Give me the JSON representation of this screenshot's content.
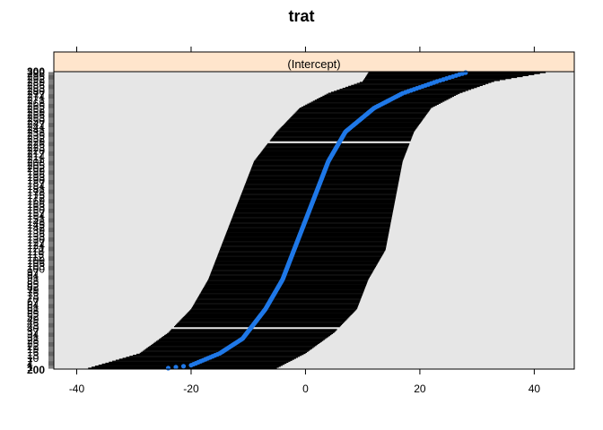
{
  "chart_data": {
    "type": "dotplot",
    "title": "trat",
    "panel_label": "(Intercept)",
    "x_ticks": [
      -40,
      -20,
      0,
      20,
      40
    ],
    "xlim": [
      -44,
      47
    ],
    "n_levels": 300,
    "y_tick_labels": [
      "300",
      "200"
    ],
    "grid": false,
    "series": [
      {
        "estimate_profile": {
          "rank": [
            0,
            0.01,
            0.05,
            0.1,
            0.2,
            0.3,
            0.4,
            0.5,
            0.6,
            0.7,
            0.8,
            0.88,
            0.93,
            0.97,
            1.0
          ],
          "value": [
            -24,
            -20,
            -15,
            -11,
            -7,
            -4,
            -2,
            0,
            2,
            4,
            7,
            12,
            17,
            23,
            28
          ]
        }
      }
    ],
    "ci_profile": {
      "rank": [
        0,
        0.05,
        0.12,
        0.2,
        0.3,
        0.4,
        0.5,
        0.6,
        0.7,
        0.8,
        0.88,
        0.93,
        0.97,
        1.0
      ],
      "low": [
        -38,
        -29,
        -24,
        -20,
        -17,
        -15,
        -13,
        -11,
        -9,
        -5,
        -1,
        4,
        10,
        11
      ],
      "high": [
        -5,
        0,
        5,
        9,
        11,
        14,
        15,
        16,
        17,
        19,
        22,
        27,
        33,
        42
      ]
    },
    "colors": {
      "points": "#1f78e8",
      "bars": "#000000",
      "panel_bg": "#e6e6e6",
      "strip_bg": "#ffe5cc"
    }
  }
}
